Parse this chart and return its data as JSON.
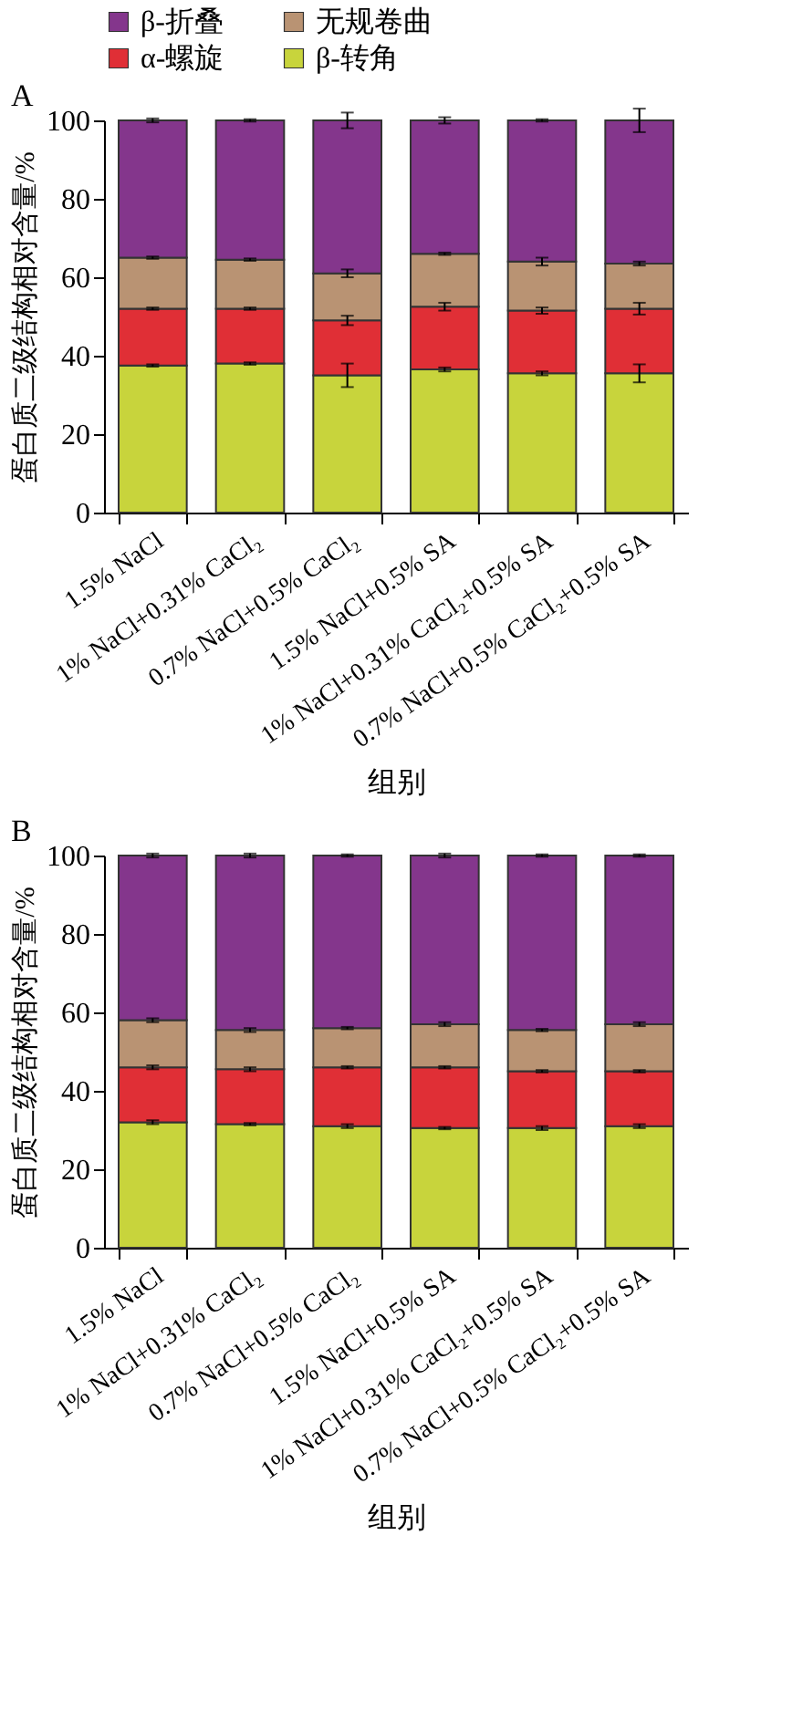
{
  "chart_data": [
    {
      "type": "bar",
      "title": "A",
      "xlabel": "组别",
      "ylabel": "蛋白质二级结构相对含量/%",
      "stacked": true,
      "legend": "top",
      "categories": [
        "1.5% NaCl",
        "1% NaCl+0.31% CaCl₂",
        "0.7% NaCl+0.5% CaCl₂",
        "1.5% NaCl+0.5% SA",
        "1% NaCl+0.31% CaCl₂+0.5% SA",
        "0.7% NaCl+0.5% CaCl₂+0.5% SA"
      ],
      "ylim": [
        0,
        100
      ],
      "yticks": [
        0,
        20,
        40,
        60,
        80,
        100
      ],
      "series": [
        {
          "name": "β-转角",
          "color": "#c8d43c",
          "values": [
            37.5,
            38,
            35,
            36.5,
            35.5,
            35.5
          ],
          "errors": [
            0.3,
            0.3,
            3,
            0.5,
            0.5,
            2.3
          ]
        },
        {
          "name": "α-螺旋",
          "color": "#e02f36",
          "values": [
            14.5,
            14,
            14,
            16,
            16,
            16.5
          ],
          "errors": [
            0.3,
            0.3,
            1.2,
            1,
            0.8,
            1.5
          ]
        },
        {
          "name": "无规卷曲",
          "color": "#b99373",
          "values": [
            13,
            12.5,
            12,
            13.5,
            12.5,
            11.5
          ],
          "errors": [
            0.3,
            0.3,
            1,
            0.3,
            1,
            0.5
          ]
        },
        {
          "name": "β-折叠",
          "color": "#84368c",
          "values": [
            35,
            35.5,
            39,
            34,
            36,
            36.5
          ],
          "errors": [
            0.5,
            0.3,
            2,
            0.8,
            0.3,
            3
          ]
        }
      ]
    },
    {
      "type": "bar",
      "title": "B",
      "xlabel": "组别",
      "ylabel": "蛋白质二级结构相对含量/%",
      "stacked": true,
      "legend": "top",
      "categories": [
        "1.5% NaCl",
        "1% NaCl+0.31% CaCl₂",
        "0.7% NaCl+0.5% CaCl₂",
        "1.5% NaCl+0.5% SA",
        "1% NaCl+0.31% CaCl₂+0.5% SA",
        "0.7% NaCl+0.5% CaCl₂+0.5% SA"
      ],
      "ylim": [
        0,
        100
      ],
      "yticks": [
        0,
        20,
        40,
        60,
        80,
        100
      ],
      "series": [
        {
          "name": "β-转角",
          "color": "#c8d43c",
          "values": [
            32,
            31.5,
            31,
            30.5,
            30.5,
            31
          ],
          "errors": [
            0.5,
            0.3,
            0.5,
            0.3,
            0.5,
            0.5
          ]
        },
        {
          "name": "α-螺旋",
          "color": "#e02f36",
          "values": [
            14,
            14,
            15,
            15.5,
            14.5,
            14
          ],
          "errors": [
            0.5,
            0.5,
            0.3,
            0.3,
            0.3,
            0.3
          ]
        },
        {
          "name": "无规卷曲",
          "color": "#b99373",
          "values": [
            12,
            10,
            10,
            11,
            10.5,
            12
          ],
          "errors": [
            0.5,
            0.5,
            0.3,
            0.5,
            0.3,
            0.5
          ]
        },
        {
          "name": "β-折叠",
          "color": "#84368c",
          "values": [
            42,
            44.5,
            44,
            43,
            44.5,
            43
          ],
          "errors": [
            0.5,
            0.5,
            0.3,
            0.5,
            0.3,
            0.3
          ]
        }
      ]
    }
  ]
}
